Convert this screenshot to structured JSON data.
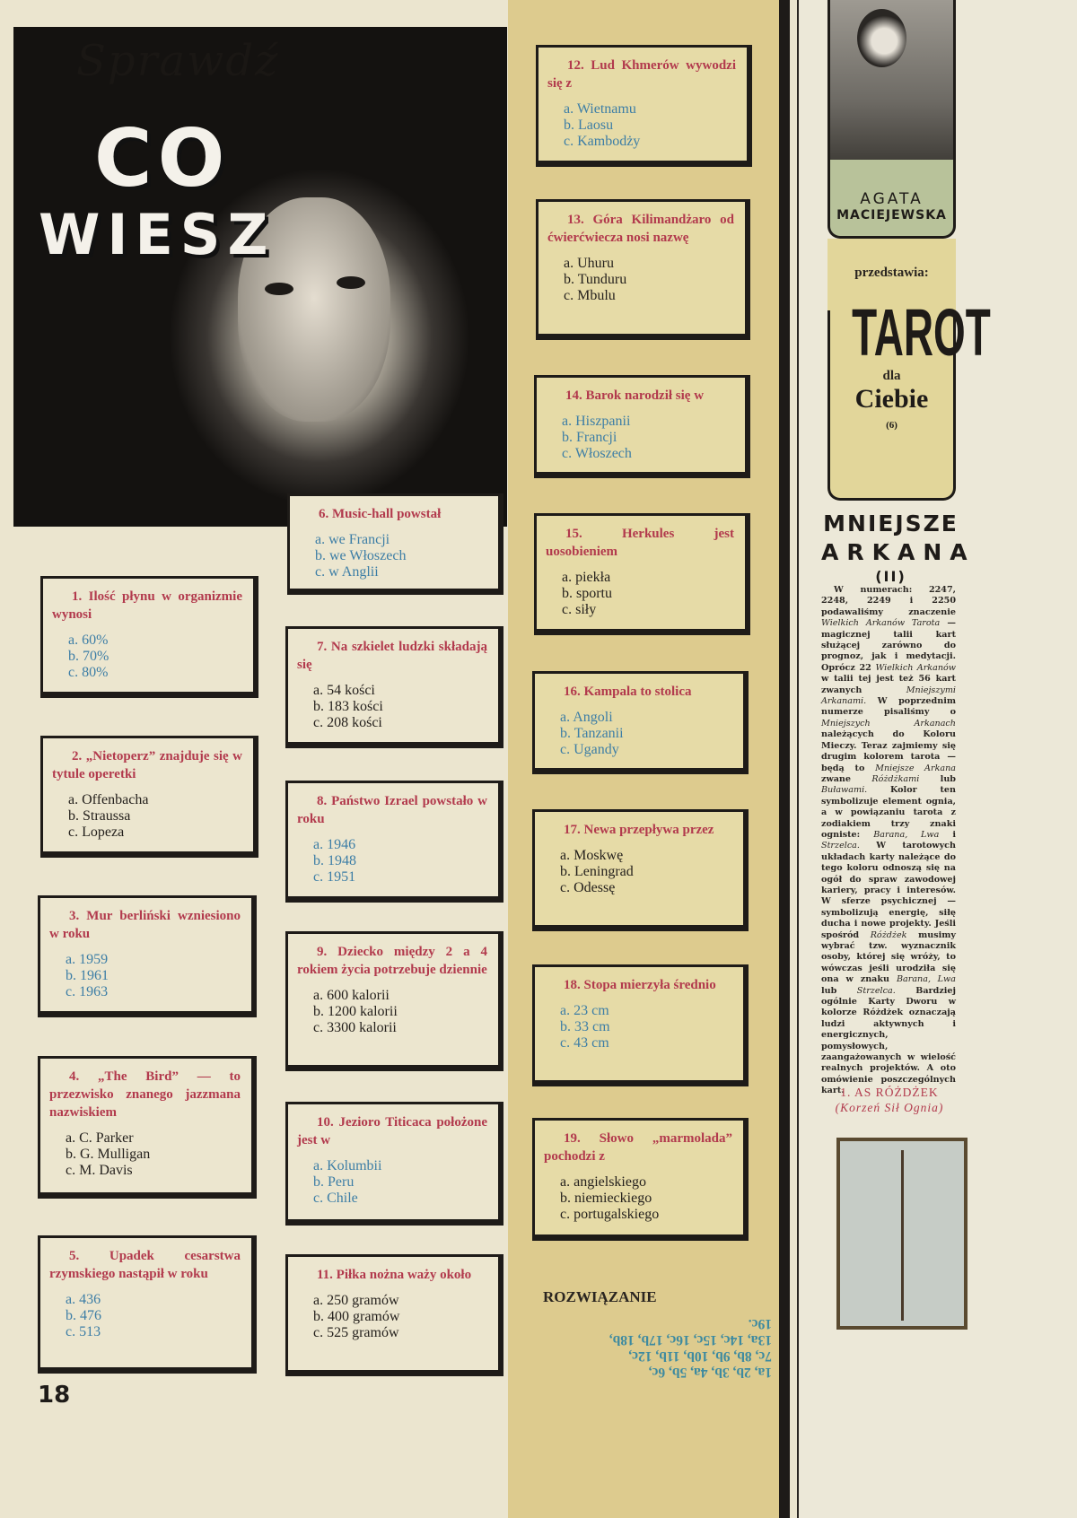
{
  "quiz": {
    "header_script": "Sprawdź",
    "header_big1": "CO",
    "header_big2": "WIESZ",
    "questions": [
      {
        "title": "1. Ilość płynu w organizmie wynosi",
        "answers": [
          "a. 60%",
          "b. 70%",
          "c. 80%"
        ],
        "answer_color": "blue"
      },
      {
        "title": "2. „Nietoperz” znajduje się w tytule operetki",
        "answers": [
          "a. Offenbacha",
          "b. Straussa",
          "c. Lopeza"
        ],
        "answer_color": "black"
      },
      {
        "title": "3. Mur berliński wzniesiono w roku",
        "answers": [
          "a. 1959",
          "b. 1961",
          "c. 1963"
        ],
        "answer_color": "blue"
      },
      {
        "title": "4. „The Bird” — to przezwisko znanego jazzmana nazwiskiem",
        "answers": [
          "a. C. Parker",
          "b. G. Mulligan",
          "c. M. Davis"
        ],
        "answer_color": "black"
      },
      {
        "title": "5. Upadek cesarstwa rzymskiego nastąpił w roku",
        "answers": [
          "a. 436",
          "b. 476",
          "c. 513"
        ],
        "answer_color": "blue"
      },
      {
        "title": "6. Music-hall powstał",
        "answers": [
          "a. we Francji",
          "b. we Włoszech",
          "c. w Anglii"
        ],
        "answer_color": "blue"
      },
      {
        "title": "7. Na szkielet ludzki składają się",
        "answers": [
          "a. 54 kości",
          "b. 183 kości",
          "c. 208 kości"
        ],
        "answer_color": "black"
      },
      {
        "title": "8. Państwo Izrael powstało w roku",
        "answers": [
          "a. 1946",
          "b. 1948",
          "c. 1951"
        ],
        "answer_color": "blue"
      },
      {
        "title": "9. Dziecko między 2 a 4 rokiem życia potrzebuje dziennie",
        "answers": [
          "a. 600 kalorii",
          "b. 1200 kalorii",
          "c. 3300 kalorii"
        ],
        "answer_color": "black"
      },
      {
        "title": "10. Jezioro Titicaca położone jest w",
        "answers": [
          "a. Kolumbii",
          "b. Peru",
          "c. Chile"
        ],
        "answer_color": "blue"
      },
      {
        "title": "11. Piłka nożna waży około",
        "answers": [
          "a. 250 gramów",
          "b. 400 gramów",
          "c. 525 gramów"
        ],
        "answer_color": "black"
      },
      {
        "title": "12. Lud Khmerów wywodzi się z",
        "answers": [
          "a. Wietnamu",
          "b. Laosu",
          "c. Kambodży"
        ],
        "answer_color": "blue"
      },
      {
        "title": "13. Góra Kilimandżaro od ćwierćwiecza nosi nazwę",
        "answers": [
          "a. Uhuru",
          "b. Tunduru",
          "c. Mbulu"
        ],
        "answer_color": "black"
      },
      {
        "title": "14. Barok narodził się w",
        "answers": [
          "a. Hiszpanii",
          "b. Francji",
          "c. Włoszech"
        ],
        "answer_color": "blue"
      },
      {
        "title": "15. Herkules jest uosobieniem",
        "answers": [
          "a. piekła",
          "b. sportu",
          "c. siły"
        ],
        "answer_color": "black"
      },
      {
        "title": "16. Kampala to stolica",
        "answers": [
          "a. Angoli",
          "b. Tanzanii",
          "c. Ugandy"
        ],
        "answer_color": "blue"
      },
      {
        "title": "17. Newa przepływa przez",
        "answers": [
          "a. Moskwę",
          "b. Leningrad",
          "c. Odessę"
        ],
        "answer_color": "black"
      },
      {
        "title": "18. Stopa mierzyła średnio",
        "answers": [
          "a. 23 cm",
          "b. 33 cm",
          "c. 43 cm"
        ],
        "answer_color": "blue"
      },
      {
        "title": "19. Słowo „marmolada” pochodzi z",
        "answers": [
          "a. angielskiego",
          "b. niemieckiego",
          "c. portugalskiego"
        ],
        "answer_color": "black"
      }
    ],
    "solution_title": "ROZWIĄZANIE",
    "solution_lines": [
      "1a, 2b, 3b, 4a, 5b, 6c,",
      "7c, 8b, 9b, 10b, 11b, 12c,",
      "13a, 14c, 15c, 16c, 17b, 18b,",
      "19c."
    ],
    "page_number": "18"
  },
  "tarot": {
    "author_first": "AGATA",
    "author_last": "MACIEJEWSKA",
    "presents": "przedstawia:",
    "title": "TAROT",
    "dla": "dla",
    "ciebie": "Ciebie",
    "episode": "(6)",
    "section_line1": "MNIEJSZE",
    "section_line2": "ARKANA",
    "section_part": "(II)",
    "body": [
      {
        "t": "W numerach: 2247, 2248, 2249 i 2250 podawaliśmy znaczenie ",
        "i": false
      },
      {
        "t": "Wielkich Arkanów Tarota",
        "i": true
      },
      {
        "t": " — magicznej talii kart służącej zarówno do prognoz, jak i medytacji. Oprócz 22 ",
        "i": false
      },
      {
        "t": "Wielkich Arkanów",
        "i": true
      },
      {
        "t": " w talii tej jest też 56 kart zwanych ",
        "i": false
      },
      {
        "t": "Mniejszymi Arkanami.",
        "i": true
      },
      {
        "t": " W poprzednim numerze pisaliśmy o ",
        "i": false
      },
      {
        "t": "Mniejszych Arkanach",
        "i": true
      },
      {
        "t": " należących do Koloru Mieczy. Teraz zajmiemy się drugim kolorem tarota — będą to ",
        "i": false
      },
      {
        "t": "Mniejsze Arkana",
        "i": true
      },
      {
        "t": " zwane ",
        "i": false
      },
      {
        "t": "Różdżkami",
        "i": true
      },
      {
        "t": " lub ",
        "i": false
      },
      {
        "t": "Buławami.",
        "i": true
      },
      {
        "t": " Kolor ten symbolizuje element ognia, a w powiązaniu tarota z zodiakiem trzy znaki ogniste: ",
        "i": false
      },
      {
        "t": "Barana, Lwa",
        "i": true
      },
      {
        "t": " i ",
        "i": false
      },
      {
        "t": "Strzelca.",
        "i": true
      },
      {
        "t": " W tarotowych układach karty należące do tego koloru odnoszą się na ogół do spraw zawodowej kariery, pracy i interesów. W sferze psychicznej — symbolizują energię, siłę ducha i nowe projekty. Jeśli spośród ",
        "i": false
      },
      {
        "t": "Różdżek",
        "i": true
      },
      {
        "t": " musimy wybrać tzw. wyznacznik osoby, której się wróży, to wówczas jeśli urodziła się ona w znaku ",
        "i": false
      },
      {
        "t": "Barana, Lwa",
        "i": true
      },
      {
        "t": " lub ",
        "i": false
      },
      {
        "t": "Strzelca.",
        "i": true
      },
      {
        "t": " Bardziej ogólnie Karty Dworu w kolorze Różdżek oznaczają ludzi aktywnych i energicznych, pomysłowych, zaangażowanych w wielość realnych projektów. A oto omówienie poszczególnych kart.",
        "i": false
      }
    ],
    "card_title": "1. AS RÓŻDŻEK",
    "card_subtitle": "(Korzeń Sił Ognia)"
  },
  "colors": {
    "question_title": "#b23a4d",
    "answer_blue": "#3d7ea6",
    "answer_black": "#25211d",
    "solution": "#3d8aa0",
    "strip": "#ddcb8e",
    "banner": "#b8c29a"
  }
}
